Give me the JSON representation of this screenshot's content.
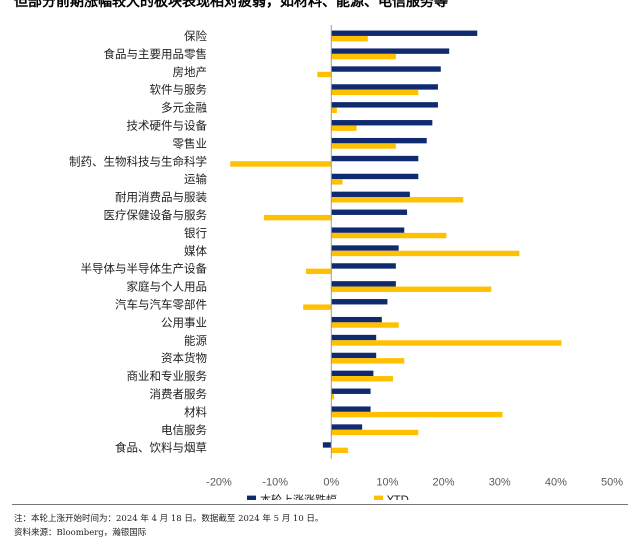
{
  "title": "但部分前期涨幅较大的板块表现相对疲弱，如材料、能源、电信服务等",
  "notes": {
    "note": "注：本轮上涨开始时间为：2024 年 4 月 18 日。数据截至 2024 年 5 月 10 日。",
    "source": "资料来源：Bloomberg，瀚银国际"
  },
  "chart_data": {
    "type": "bar",
    "orientation": "horizontal",
    "categories": [
      "保险",
      "食品与主要用品零售",
      "房地产",
      "软件与服务",
      "多元金融",
      "技术硬件与设备",
      "零售业",
      "制药、生物科技与生命科学",
      "运输",
      "耐用消费品与服装",
      "医疗保健设备与服务",
      "银行",
      "媒体",
      "半导体与半导体生产设备",
      "家庭与个人用品",
      "汽车与汽车零部件",
      "公用事业",
      "能源",
      "资本货物",
      "商业和专业服务",
      "消费者服务",
      "材料",
      "电信服务",
      "食品、饮料与烟草"
    ],
    "series": [
      {
        "name": "本轮上涨涨跌幅",
        "color": "#0f2a6e",
        "values": [
          26,
          21,
          19.5,
          19,
          19,
          18,
          17,
          15.5,
          15.5,
          14,
          13.5,
          13,
          12,
          11.5,
          11.5,
          10,
          9,
          8,
          8,
          7.5,
          7,
          7,
          5.5,
          -1.5
        ]
      },
      {
        "name": "YTD",
        "color": "#ffc000",
        "values": [
          6.5,
          11.5,
          -2.5,
          15.5,
          1,
          4.5,
          11.5,
          -18,
          2,
          23.5,
          -12,
          20.5,
          33.5,
          -4.5,
          28.5,
          -5,
          12,
          41,
          13,
          11,
          0.5,
          30.5,
          15.5,
          3
        ]
      }
    ],
    "xticks": [
      "-20%",
      "-10%",
      "0%",
      "10%",
      "20%",
      "30%",
      "40%",
      "50%"
    ],
    "xlim": [
      -20,
      50
    ],
    "legend_position": "bottom",
    "grid": false
  }
}
